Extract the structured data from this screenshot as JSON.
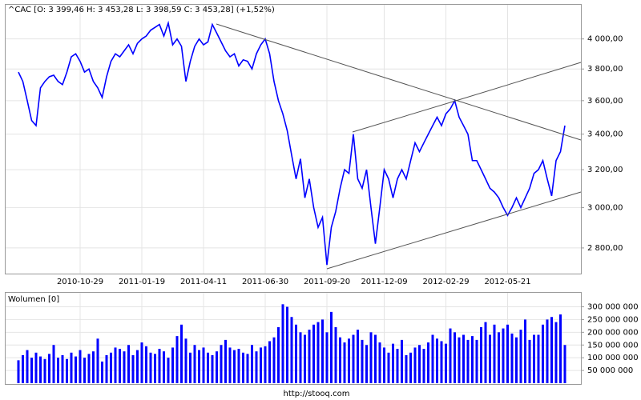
{
  "chart_data": [
    {
      "type": "line",
      "title": "^CAC [O: 3 399,46  H: 3 453,28  L: 3 398,59  C: 3 453,28] (+1,52%)",
      "log_y": true,
      "grid": true,
      "color": "#0000ff",
      "categories": [
        null,
        null,
        null,
        null,
        null,
        null,
        null,
        null,
        null,
        null,
        null,
        null,
        null,
        null,
        "2010-10-29",
        null,
        null,
        null,
        null,
        null,
        null,
        null,
        null,
        null,
        null,
        null,
        null,
        null,
        "2011-01-19",
        null,
        null,
        null,
        null,
        null,
        null,
        null,
        null,
        null,
        null,
        null,
        null,
        null,
        "2011-04-11",
        null,
        null,
        null,
        null,
        null,
        null,
        null,
        null,
        null,
        null,
        null,
        null,
        null,
        "2011-06-30",
        null,
        null,
        null,
        null,
        null,
        null,
        null,
        null,
        null,
        null,
        null,
        null,
        null,
        "2011-09-20",
        null,
        null,
        null,
        null,
        null,
        null,
        null,
        null,
        null,
        null,
        null,
        null,
        "2011-12-09",
        null,
        null,
        null,
        null,
        null,
        null,
        null,
        null,
        null,
        null,
        null,
        null,
        null,
        "2012-02-29",
        null,
        null,
        null,
        null,
        null,
        null,
        null,
        null,
        null,
        null,
        null,
        null,
        null,
        "2012-05-21",
        null,
        null,
        null,
        null,
        null,
        null,
        null,
        null,
        null,
        null,
        null,
        null,
        null
      ],
      "values": [
        3780,
        3720,
        3600,
        3480,
        3450,
        3680,
        3720,
        3750,
        3760,
        3720,
        3700,
        3780,
        3880,
        3900,
        3850,
        3780,
        3800,
        3720,
        3680,
        3620,
        3750,
        3850,
        3900,
        3880,
        3920,
        3960,
        3900,
        3970,
        4000,
        4020,
        4060,
        4080,
        4100,
        4020,
        4110,
        3960,
        4000,
        3950,
        3720,
        3850,
        3950,
        4000,
        3960,
        3980,
        4100,
        4040,
        3980,
        3920,
        3880,
        3900,
        3820,
        3860,
        3850,
        3800,
        3900,
        3960,
        4000,
        3900,
        3720,
        3600,
        3520,
        3420,
        3280,
        3150,
        3260,
        3050,
        3150,
        3000,
        2900,
        2950,
        2720,
        2900,
        2980,
        3100,
        3200,
        3180,
        3400,
        3150,
        3100,
        3200,
        3000,
        2820,
        3000,
        3200,
        3150,
        3050,
        3150,
        3200,
        3150,
        3250,
        3350,
        3300,
        3350,
        3400,
        3450,
        3500,
        3450,
        3520,
        3550,
        3600,
        3500,
        3450,
        3400,
        3250,
        3250,
        3200,
        3150,
        3100,
        3080,
        3050,
        3000,
        2960,
        3000,
        3050,
        3000,
        3050,
        3100,
        3180,
        3200,
        3250,
        3150,
        3060,
        3250,
        3300,
        3450
      ],
      "ylim": [
        2680,
        4240
      ],
      "yticks": [
        {
          "value": 2800,
          "label": "2 800,00"
        },
        {
          "value": 3000,
          "label": "3 000,00"
        },
        {
          "value": 3200,
          "label": "3 200,00"
        },
        {
          "value": 3400,
          "label": "3 400,00"
        },
        {
          "value": 3600,
          "label": "3 600,00"
        },
        {
          "value": 3800,
          "label": "3 800,00"
        },
        {
          "value": 4000,
          "label": "4 000,00"
        }
      ]
    },
    {
      "type": "bar",
      "title": "Wolumen [0]",
      "grid": true,
      "color": "#0000ff",
      "values": [
        90000000,
        110000000,
        130000000,
        100000000,
        120000000,
        105000000,
        95000000,
        115000000,
        150000000,
        100000000,
        110000000,
        95000000,
        120000000,
        105000000,
        130000000,
        100000000,
        115000000,
        125000000,
        175000000,
        85000000,
        110000000,
        120000000,
        140000000,
        135000000,
        125000000,
        150000000,
        110000000,
        130000000,
        160000000,
        145000000,
        120000000,
        115000000,
        135000000,
        125000000,
        100000000,
        140000000,
        185000000,
        230000000,
        175000000,
        120000000,
        150000000,
        130000000,
        140000000,
        120000000,
        110000000,
        125000000,
        150000000,
        170000000,
        140000000,
        130000000,
        135000000,
        120000000,
        115000000,
        150000000,
        125000000,
        140000000,
        145000000,
        165000000,
        180000000,
        220000000,
        310000000,
        300000000,
        260000000,
        230000000,
        200000000,
        190000000,
        210000000,
        230000000,
        240000000,
        250000000,
        200000000,
        280000000,
        220000000,
        180000000,
        160000000,
        175000000,
        190000000,
        210000000,
        170000000,
        150000000,
        200000000,
        190000000,
        160000000,
        140000000,
        120000000,
        155000000,
        135000000,
        170000000,
        110000000,
        120000000,
        140000000,
        150000000,
        135000000,
        160000000,
        190000000,
        175000000,
        165000000,
        155000000,
        215000000,
        200000000,
        180000000,
        190000000,
        170000000,
        185000000,
        170000000,
        220000000,
        240000000,
        190000000,
        230000000,
        200000000,
        215000000,
        230000000,
        195000000,
        180000000,
        210000000,
        250000000,
        170000000,
        190000000,
        190000000,
        230000000,
        250000000,
        260000000,
        240000000,
        270000000,
        150000000
      ],
      "ylim": [
        0,
        355000000
      ],
      "yticks": [
        {
          "value": 50000000,
          "label": "50 000 000"
        },
        {
          "value": 100000000,
          "label": "100 000 000"
        },
        {
          "value": 150000000,
          "label": "150 000 000"
        },
        {
          "value": 200000000,
          "label": "200 000 000"
        },
        {
          "value": 250000000,
          "label": "250 000 000"
        },
        {
          "value": 300000000,
          "label": "300 000 000"
        }
      ]
    }
  ],
  "footer": "http://stooq.com"
}
